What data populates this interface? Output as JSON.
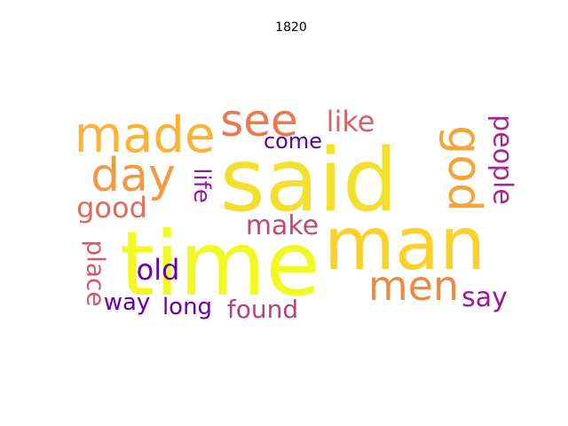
{
  "chart_data": {
    "type": "wordcloud",
    "title": "1820",
    "words": [
      {
        "text": "time",
        "color": "#f0f921"
      },
      {
        "text": "said",
        "color": "#f3e02c"
      },
      {
        "text": "man",
        "color": "#fbd12a"
      },
      {
        "text": "made",
        "color": "#f9b33a"
      },
      {
        "text": "see",
        "color": "#e97a50"
      },
      {
        "text": "day",
        "color": "#f19b41"
      },
      {
        "text": "god",
        "color": "#f4a53a"
      },
      {
        "text": "men",
        "color": "#ec8a45"
      },
      {
        "text": "like",
        "color": "#dc5f67"
      },
      {
        "text": "good",
        "color": "#e06a5c"
      },
      {
        "text": "people",
        "color": "#a6288f"
      },
      {
        "text": "life",
        "color": "#8f1aa0"
      },
      {
        "text": "come",
        "color": "#5b02a3"
      },
      {
        "text": "make",
        "color": "#c2487a"
      },
      {
        "text": "place",
        "color": "#d3596d"
      },
      {
        "text": "old",
        "color": "#6a00a8"
      },
      {
        "text": "say",
        "color": "#9c179e"
      },
      {
        "text": "way",
        "color": "#6a00a8"
      },
      {
        "text": "long",
        "color": "#6e00a8"
      },
      {
        "text": "found",
        "color": "#bb3e82"
      }
    ]
  }
}
